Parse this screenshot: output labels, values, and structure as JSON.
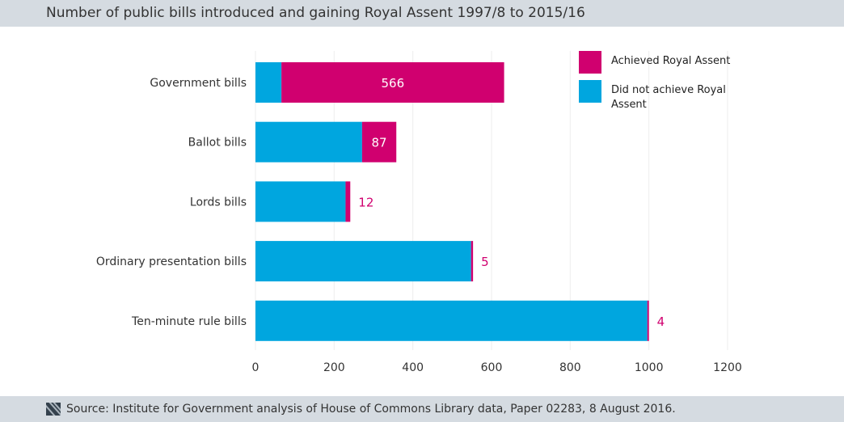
{
  "title": "Number of public bills introduced and gaining Royal Assent  1997/8 to 2015/16",
  "source": "Source: Institute for Government analysis of House of Commons Library data, Paper 02283, 8 August 2016.",
  "chart_data": {
    "type": "bar",
    "orientation": "horizontal",
    "stacked": true,
    "categories": [
      "Government bills",
      "Ballot bills",
      "Lords bills",
      "Ordinary presentation bills",
      "Ten-minute rule bills"
    ],
    "series": [
      {
        "name": "Did not achieve Royal Assent",
        "color": "#00a6df",
        "values": [
          66,
          271,
          229,
          548,
          996
        ]
      },
      {
        "name": "Achieved Royal Assent",
        "color": "#d0006f",
        "values": [
          566,
          87,
          12,
          5,
          4
        ]
      }
    ],
    "data_labels": [
      "566",
      "87",
      "12",
      "5",
      "4"
    ],
    "xticks": [
      0,
      200,
      400,
      600,
      800,
      1000,
      1200
    ],
    "xlim": [
      0,
      1200
    ],
    "grid": true,
    "legend_placement": "top-right",
    "legend": [
      "Achieved Royal Assent",
      "Did not achieve Royal Assent"
    ]
  }
}
